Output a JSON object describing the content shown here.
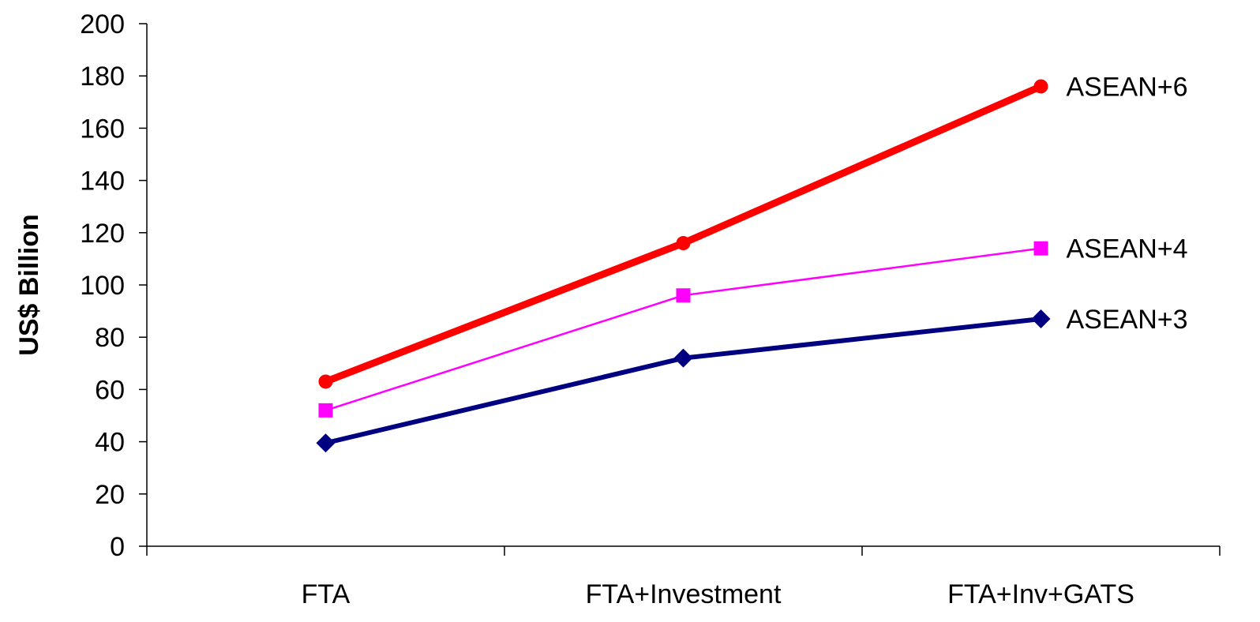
{
  "chart_data": {
    "type": "line",
    "title": "",
    "xlabel": "",
    "ylabel": "US$ Billion",
    "ylim": [
      0,
      200
    ],
    "yticks": [
      0,
      20,
      40,
      60,
      80,
      100,
      120,
      140,
      160,
      180,
      200
    ],
    "categories": [
      "FTA",
      "FTA+Investment",
      "FTA+Inv+GATS"
    ],
    "grid": false,
    "legend": "inline labels at right end of each line",
    "series": [
      {
        "name": "ASEAN+6",
        "values": [
          63,
          116,
          176
        ],
        "color": "#ff0000",
        "marker": "circle"
      },
      {
        "name": "ASEAN+4",
        "values": [
          52,
          96,
          114
        ],
        "color": "#ff00ff",
        "marker": "square"
      },
      {
        "name": "ASEAN+3",
        "values": [
          39.5,
          72,
          87
        ],
        "color": "#000080",
        "marker": "diamond"
      }
    ]
  }
}
